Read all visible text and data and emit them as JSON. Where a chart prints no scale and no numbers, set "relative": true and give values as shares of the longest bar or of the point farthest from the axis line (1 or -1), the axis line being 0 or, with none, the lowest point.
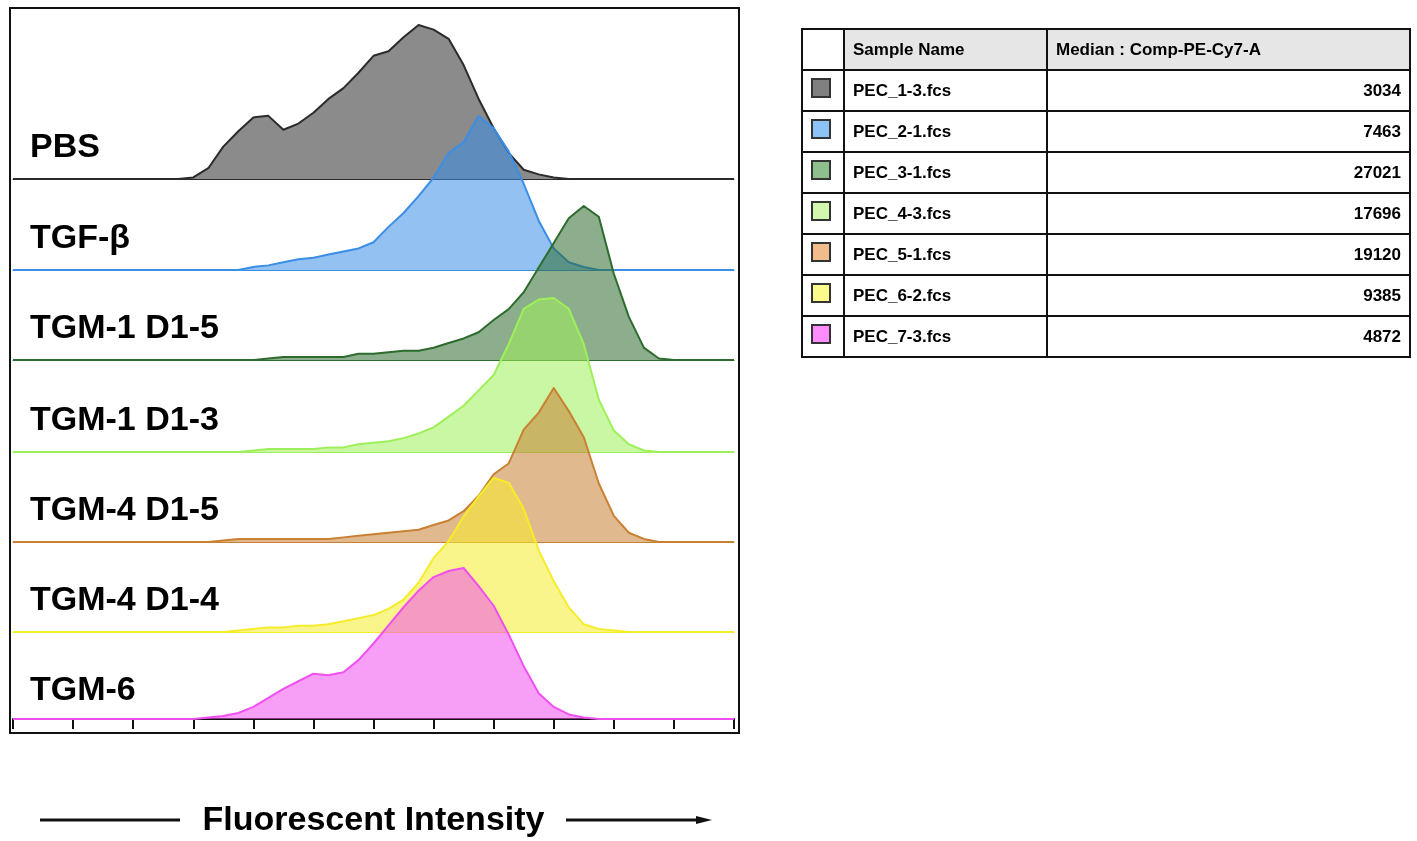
{
  "chart_data": [
    {
      "type": "area",
      "relative": true,
      "marker": "none",
      "categories": [
        null,
        null,
        null,
        null,
        null,
        null,
        null,
        null,
        null,
        null,
        null,
        null,
        null,
        null,
        null,
        null,
        null,
        null,
        null,
        null,
        null,
        null,
        null,
        null,
        null,
        null,
        null,
        null,
        null,
        null,
        null,
        null,
        null,
        null,
        null,
        null,
        null,
        null,
        null,
        null,
        null,
        null,
        null,
        null,
        null,
        null,
        null,
        null,
        null
      ],
      "series": [
        {
          "name": "PBS",
          "color": "#2b2b2b",
          "values": [
            0,
            0,
            0,
            0,
            0,
            0,
            0,
            0,
            0,
            0,
            0,
            0,
            0.01,
            0.07,
            0.21,
            0.31,
            0.4,
            0.41,
            0.32,
            0.36,
            0.43,
            0.52,
            0.59,
            0.69,
            0.8,
            0.83,
            0.92,
            1,
            0.97,
            0.91,
            0.74,
            0.52,
            0.33,
            0.17,
            0.06,
            0.03,
            0.01,
            0,
            0,
            0,
            0,
            0,
            0,
            0,
            0,
            0,
            0,
            0,
            0
          ]
        }
      ]
    },
    {
      "type": "area",
      "relative": true,
      "marker": "none",
      "categories": [
        null,
        null,
        null,
        null,
        null,
        null,
        null,
        null,
        null,
        null,
        null,
        null,
        null,
        null,
        null,
        null,
        null,
        null,
        null,
        null,
        null,
        null,
        null,
        null,
        null,
        null,
        null,
        null,
        null,
        null,
        null,
        null,
        null,
        null,
        null,
        null,
        null,
        null,
        null,
        null,
        null,
        null,
        null,
        null,
        null,
        null,
        null,
        null,
        null
      ],
      "series": [
        {
          "name": "TGF-β",
          "color": "#3a8ee6",
          "values": [
            0,
            0,
            0,
            0,
            0,
            0,
            0,
            0,
            0,
            0,
            0,
            0,
            0,
            0,
            0,
            0,
            0.02,
            0.03,
            0.05,
            0.07,
            0.08,
            0.1,
            0.12,
            0.14,
            0.18,
            0.28,
            0.37,
            0.48,
            0.6,
            0.76,
            0.83,
            1,
            0.92,
            0.77,
            0.56,
            0.32,
            0.14,
            0.05,
            0.02,
            0,
            0,
            0,
            0,
            0,
            0,
            0,
            0,
            0,
            0
          ]
        }
      ]
    },
    {
      "type": "area",
      "relative": true,
      "marker": "none",
      "categories": [
        null,
        null,
        null,
        null,
        null,
        null,
        null,
        null,
        null,
        null,
        null,
        null,
        null,
        null,
        null,
        null,
        null,
        null,
        null,
        null,
        null,
        null,
        null,
        null,
        null,
        null,
        null,
        null,
        null,
        null,
        null,
        null,
        null,
        null,
        null,
        null,
        null,
        null,
        null,
        null,
        null,
        null,
        null,
        null,
        null,
        null,
        null,
        null,
        null
      ],
      "series": [
        {
          "name": "TGM-1 D1-5",
          "color": "#2e6b2e",
          "values": [
            0,
            0,
            0,
            0,
            0,
            0,
            0,
            0,
            0,
            0,
            0,
            0,
            0,
            0,
            0,
            0,
            0,
            0.01,
            0.02,
            0.02,
            0.02,
            0.02,
            0.02,
            0.04,
            0.04,
            0.05,
            0.06,
            0.06,
            0.08,
            0.11,
            0.14,
            0.18,
            0.26,
            0.33,
            0.44,
            0.6,
            0.76,
            0.92,
            1,
            0.93,
            0.56,
            0.28,
            0.08,
            0.01,
            0,
            0,
            0,
            0,
            0
          ]
        }
      ]
    },
    {
      "type": "area",
      "relative": true,
      "marker": "none",
      "categories": [
        null,
        null,
        null,
        null,
        null,
        null,
        null,
        null,
        null,
        null,
        null,
        null,
        null,
        null,
        null,
        null,
        null,
        null,
        null,
        null,
        null,
        null,
        null,
        null,
        null,
        null,
        null,
        null,
        null,
        null,
        null,
        null,
        null,
        null,
        null,
        null,
        null,
        null,
        null,
        null,
        null,
        null,
        null,
        null,
        null,
        null,
        null,
        null,
        null
      ],
      "series": [
        {
          "name": "TGM-1 D1-3",
          "color": "#9ef05a",
          "values": [
            0,
            0,
            0,
            0,
            0,
            0,
            0,
            0,
            0,
            0,
            0,
            0,
            0,
            0,
            0,
            0,
            0.01,
            0.02,
            0.02,
            0.02,
            0.02,
            0.03,
            0.03,
            0.05,
            0.06,
            0.07,
            0.09,
            0.12,
            0.16,
            0.23,
            0.3,
            0.4,
            0.5,
            0.7,
            0.93,
            0.99,
            1,
            0.93,
            0.7,
            0.34,
            0.14,
            0.05,
            0.01,
            0,
            0,
            0,
            0,
            0,
            0
          ]
        }
      ]
    },
    {
      "type": "area",
      "relative": true,
      "marker": "none",
      "categories": [
        null,
        null,
        null,
        null,
        null,
        null,
        null,
        null,
        null,
        null,
        null,
        null,
        null,
        null,
        null,
        null,
        null,
        null,
        null,
        null,
        null,
        null,
        null,
        null,
        null,
        null,
        null,
        null,
        null,
        null,
        null,
        null,
        null,
        null,
        null,
        null,
        null,
        null,
        null,
        null,
        null,
        null,
        null,
        null,
        null,
        null,
        null,
        null,
        null
      ],
      "series": [
        {
          "name": "TGM-4 D1-5",
          "color": "#c98033",
          "values": [
            0,
            0,
            0,
            0,
            0,
            0,
            0,
            0,
            0,
            0,
            0,
            0,
            0,
            0,
            0.01,
            0.02,
            0.02,
            0.02,
            0.02,
            0.02,
            0.02,
            0.02,
            0.03,
            0.04,
            0.05,
            0.06,
            0.07,
            0.08,
            0.11,
            0.14,
            0.2,
            0.3,
            0.44,
            0.51,
            0.73,
            0.84,
            1,
            0.85,
            0.68,
            0.38,
            0.17,
            0.06,
            0.02,
            0,
            0,
            0,
            0,
            0,
            0
          ]
        }
      ]
    },
    {
      "type": "area",
      "relative": true,
      "marker": "none",
      "categories": [
        null,
        null,
        null,
        null,
        null,
        null,
        null,
        null,
        null,
        null,
        null,
        null,
        null,
        null,
        null,
        null,
        null,
        null,
        null,
        null,
        null,
        null,
        null,
        null,
        null,
        null,
        null,
        null,
        null,
        null,
        null,
        null,
        null,
        null,
        null,
        null,
        null,
        null,
        null,
        null,
        null,
        null,
        null,
        null,
        null,
        null,
        null,
        null,
        null
      ],
      "series": [
        {
          "name": "TGM-4 D1-4",
          "color": "#f5ec2a",
          "values": [
            0,
            0,
            0,
            0,
            0,
            0,
            0,
            0,
            0,
            0,
            0,
            0,
            0,
            0,
            0,
            0.01,
            0.02,
            0.03,
            0.03,
            0.04,
            0.04,
            0.05,
            0.07,
            0.09,
            0.11,
            0.15,
            0.21,
            0.32,
            0.48,
            0.59,
            0.75,
            0.88,
            1,
            0.97,
            0.8,
            0.53,
            0.33,
            0.16,
            0.05,
            0.02,
            0.01,
            0,
            0,
            0,
            0,
            0,
            0,
            0,
            0
          ]
        }
      ]
    },
    {
      "type": "area",
      "relative": true,
      "marker": "none",
      "xlabel": "Fluorescent Intensity",
      "categories": [
        null,
        null,
        null,
        null,
        null,
        null,
        null,
        null,
        null,
        null,
        null,
        null,
        null,
        null,
        null,
        null,
        null,
        null,
        null,
        null,
        null,
        null,
        null,
        null,
        null,
        null,
        null,
        null,
        null,
        null,
        null,
        null,
        null,
        null,
        null,
        null,
        null,
        null,
        null,
        null,
        null,
        null,
        null,
        null,
        null,
        null,
        null,
        null,
        null
      ],
      "series": [
        {
          "name": "TGM-6",
          "color": "#f050f0",
          "values": [
            0,
            0,
            0,
            0,
            0,
            0,
            0,
            0,
            0,
            0,
            0,
            0,
            0,
            0.01,
            0.02,
            0.04,
            0.08,
            0.14,
            0.2,
            0.25,
            0.3,
            0.29,
            0.31,
            0.39,
            0.5,
            0.62,
            0.74,
            0.85,
            0.94,
            0.98,
            1,
            0.88,
            0.75,
            0.56,
            0.35,
            0.17,
            0.08,
            0.03,
            0.01,
            0,
            0,
            0,
            0,
            0,
            0,
            0,
            0,
            0,
            0
          ]
        }
      ]
    },
    {
      "type": "other",
      "xlabel": "Sample Name",
      "ylabel": "Median : Comp-PE-Cy7-A",
      "data_labels": true,
      "categories": [
        "PEC_1-3.fcs",
        "PEC_2-1.fcs",
        "PEC_3-1.fcs",
        "PEC_4-3.fcs",
        "PEC_5-1.fcs",
        "PEC_6-2.fcs",
        "PEC_7-3.fcs"
      ],
      "values": [
        3034,
        7463,
        27021,
        17696,
        19120,
        9385,
        4872
      ],
      "colors": [
        "#808080",
        "#8cc4f8",
        "#8fbf8f",
        "#d4f7b0",
        "#f0bc8c",
        "#fbfb8c",
        "#ff8cff"
      ]
    }
  ]
}
